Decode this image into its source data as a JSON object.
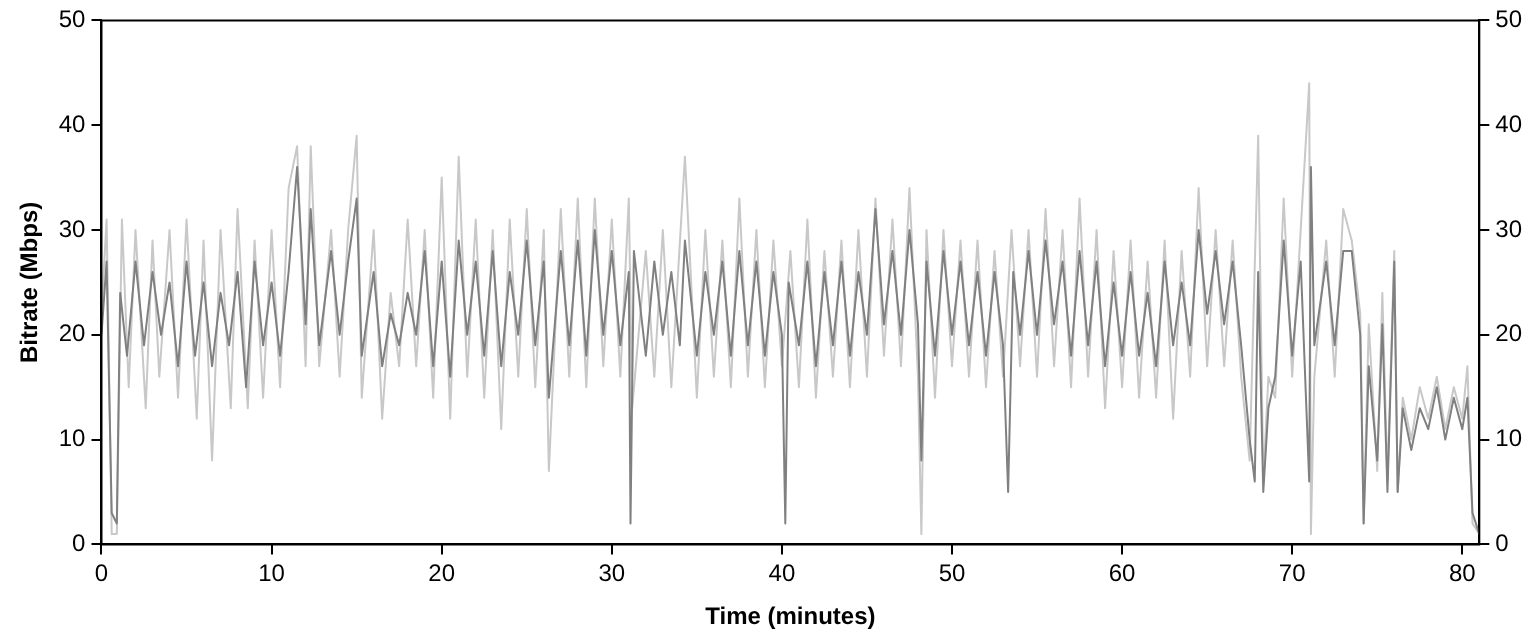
{
  "chart_data": {
    "type": "line",
    "xlabel": "Time (minutes)",
    "ylabel": "Bitrate (Mbps)",
    "xlim": [
      0,
      81
    ],
    "xticks": [
      0,
      10,
      20,
      30,
      40,
      50,
      60,
      70,
      80
    ],
    "ylim": [
      0,
      50
    ],
    "yticks": [
      0,
      10,
      20,
      30,
      40,
      50
    ],
    "y2lim": [
      0,
      50
    ],
    "y2ticks": [
      0,
      10,
      20,
      30,
      40,
      50
    ],
    "grid": false,
    "legend": false,
    "marker": "none",
    "line_style": "solid",
    "series": [
      {
        "color": "#c8c8c8",
        "x": [
          0,
          0.3,
          0.6,
          0.9,
          1.2,
          1.6,
          2,
          2.6,
          3,
          3.4,
          4,
          4.5,
          5,
          5.6,
          6,
          6.5,
          7,
          7.6,
          8,
          8.6,
          9,
          9.5,
          10,
          10.5,
          11,
          11.5,
          12,
          12.3,
          12.8,
          13.5,
          14,
          14.5,
          15,
          15.3,
          16,
          16.5,
          17,
          17.5,
          18,
          18.5,
          19,
          19.5,
          20,
          20.5,
          21,
          21.5,
          22,
          22.5,
          23,
          23.5,
          24,
          24.5,
          25,
          25.5,
          26,
          26.3,
          27,
          27.5,
          28,
          28.5,
          29,
          29.5,
          30,
          30.5,
          31,
          31.2,
          32,
          32.5,
          33,
          33.5,
          34.3,
          35,
          35.5,
          36,
          36.5,
          37,
          37.5,
          38,
          38.5,
          39,
          39.5,
          40,
          40.5,
          41,
          41.5,
          42,
          42.5,
          43,
          43.5,
          44,
          44.5,
          45,
          45.5,
          46,
          46.5,
          47,
          47.5,
          48,
          48.2,
          48.5,
          49,
          49.5,
          50,
          50.5,
          51,
          51.5,
          52,
          52.5,
          53,
          53.5,
          54,
          54.5,
          55,
          55.5,
          56,
          56.5,
          57,
          57.5,
          58,
          58.5,
          59,
          59.5,
          60,
          60.5,
          61,
          61.5,
          62,
          62.5,
          63,
          63.5,
          64,
          64.5,
          65,
          65.5,
          66,
          66.5,
          67,
          67.5,
          68,
          68.3,
          68.6,
          69,
          69.5,
          70,
          70.5,
          71,
          71.1,
          71.3,
          72,
          72.5,
          73,
          73.5,
          74,
          74.2,
          74.5,
          75,
          75.3,
          75.6,
          76,
          76.2,
          76.5,
          77,
          77.5,
          78,
          78.5,
          79,
          79.5,
          80,
          80.3,
          80.6,
          81
        ],
        "values": [
          22,
          31,
          1,
          1,
          31,
          15,
          30,
          13,
          29,
          16,
          30,
          14,
          31,
          12,
          29,
          8,
          30,
          13,
          32,
          13,
          29,
          14,
          30,
          15,
          34,
          38,
          17,
          38,
          17,
          30,
          16,
          30,
          39,
          14,
          30,
          12,
          24,
          17,
          31,
          17,
          30,
          14,
          35,
          12,
          37,
          16,
          31,
          14,
          30,
          11,
          31,
          16,
          32,
          15,
          30,
          7,
          32,
          16,
          33,
          15,
          33,
          17,
          31,
          16,
          33,
          13,
          28,
          16,
          30,
          15,
          37,
          14,
          30,
          16,
          29,
          15,
          33,
          16,
          30,
          15,
          29,
          17,
          28,
          15,
          31,
          14,
          28,
          16,
          29,
          15,
          30,
          16,
          33,
          18,
          31,
          17,
          34,
          16,
          1,
          30,
          14,
          30,
          17,
          29,
          16,
          29,
          15,
          28,
          16,
          30,
          17,
          30,
          16,
          32,
          17,
          30,
          15,
          33,
          16,
          30,
          13,
          28,
          15,
          29,
          14,
          27,
          14,
          29,
          12,
          28,
          16,
          34,
          17,
          30,
          17,
          29,
          16,
          8,
          39,
          6,
          16,
          14,
          33,
          16,
          30,
          44,
          1,
          16,
          29,
          16,
          32,
          29,
          22,
          2,
          21,
          7,
          24,
          6,
          28,
          5,
          14,
          10,
          15,
          12,
          16,
          11,
          15,
          12,
          17,
          2,
          1
        ]
      },
      {
        "color": "#808080",
        "x": [
          0,
          0.3,
          0.6,
          0.9,
          1.1,
          1.5,
          2,
          2.5,
          3,
          3.5,
          4,
          4.5,
          5,
          5.5,
          6,
          6.5,
          7,
          7.5,
          8,
          8.5,
          9,
          9.5,
          10,
          10.5,
          11,
          11.5,
          12,
          12.3,
          12.8,
          13.5,
          14,
          14.5,
          15,
          15.3,
          16,
          16.5,
          17,
          17.5,
          18,
          18.5,
          19,
          19.5,
          20,
          20.5,
          21,
          21.5,
          22,
          22.5,
          23,
          23.5,
          24,
          24.5,
          25,
          25.5,
          26,
          26.3,
          27,
          27.5,
          28,
          28.5,
          29,
          29.5,
          30,
          30.5,
          31,
          31.1,
          31.3,
          32,
          32.5,
          33,
          33.5,
          34,
          34.3,
          35,
          35.5,
          36,
          36.5,
          37,
          37.5,
          38,
          38.5,
          39,
          39.5,
          40,
          40.2,
          40.4,
          41,
          41.5,
          42,
          42.5,
          43,
          43.5,
          44,
          44.5,
          45,
          45.5,
          46,
          46.5,
          47,
          47.5,
          48,
          48.2,
          48.5,
          49,
          49.5,
          50,
          50.5,
          51,
          51.5,
          52,
          52.5,
          53,
          53.3,
          53.6,
          54,
          54.5,
          55,
          55.5,
          56,
          56.5,
          57,
          57.5,
          58,
          58.5,
          59,
          59.5,
          60,
          60.5,
          61,
          61.5,
          62,
          62.5,
          63,
          63.5,
          64,
          64.5,
          65,
          65.5,
          66,
          66.5,
          67,
          67.5,
          67.8,
          68,
          68.3,
          68.6,
          69,
          69.5,
          70,
          70.5,
          71,
          71.1,
          71.3,
          72,
          72.5,
          73,
          73.5,
          74,
          74.2,
          74.5,
          75,
          75.3,
          75.6,
          76,
          76.2,
          76.5,
          77,
          77.5,
          78,
          78.5,
          79,
          79.5,
          80,
          80.3,
          80.6,
          81
        ],
        "values": [
          20,
          27,
          3,
          2,
          24,
          18,
          27,
          19,
          26,
          20,
          25,
          17,
          27,
          18,
          25,
          17,
          24,
          19,
          26,
          15,
          27,
          19,
          25,
          18,
          26,
          36,
          21,
          32,
          19,
          28,
          20,
          27,
          33,
          18,
          26,
          17,
          22,
          19,
          24,
          20,
          28,
          17,
          27,
          16,
          29,
          20,
          27,
          18,
          28,
          17,
          26,
          20,
          29,
          19,
          27,
          14,
          28,
          19,
          29,
          18,
          30,
          20,
          28,
          19,
          26,
          2,
          28,
          18,
          27,
          20,
          26,
          19,
          29,
          18,
          26,
          20,
          27,
          18,
          28,
          19,
          27,
          18,
          26,
          20,
          2,
          25,
          19,
          27,
          17,
          26,
          19,
          27,
          18,
          26,
          20,
          32,
          21,
          28,
          20,
          30,
          21,
          8,
          27,
          18,
          28,
          20,
          27,
          19,
          26,
          18,
          26,
          19,
          5,
          26,
          20,
          28,
          20,
          29,
          21,
          27,
          18,
          28,
          19,
          27,
          17,
          25,
          18,
          26,
          18,
          24,
          17,
          27,
          19,
          25,
          19,
          30,
          22,
          28,
          21,
          27,
          19,
          10,
          6,
          26,
          5,
          13,
          16,
          29,
          18,
          27,
          6,
          36,
          19,
          27,
          19,
          28,
          28,
          20,
          2,
          17,
          8,
          21,
          5,
          27,
          5,
          13,
          9,
          13,
          11,
          15,
          10,
          14,
          11,
          14,
          3,
          1
        ]
      }
    ]
  }
}
